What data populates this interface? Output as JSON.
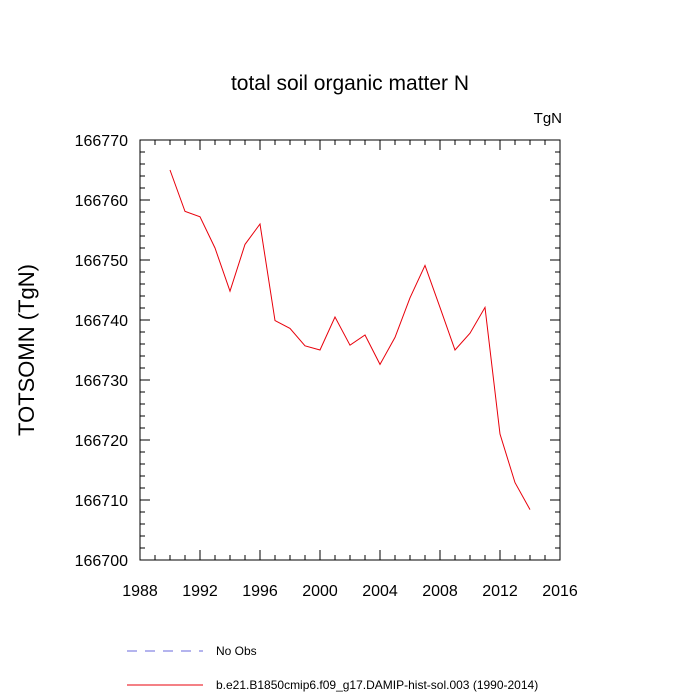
{
  "chart_data": {
    "type": "line",
    "title": "total soil organic matter N",
    "units": "TgN",
    "ylabel": "TOTSOMN  (TgN)",
    "xlabel": "",
    "xlim": [
      1988,
      2016
    ],
    "ylim": [
      166700,
      166770
    ],
    "xticks": [
      1988,
      1992,
      1996,
      2000,
      2004,
      2008,
      2012,
      2016
    ],
    "yticks": [
      166700,
      166710,
      166720,
      166730,
      166740,
      166750,
      166760,
      166770
    ],
    "grid": false,
    "legend_placement": "bottom",
    "series": [
      {
        "name": "b.e21.B1850cmip6.f09_g17.DAMIP-hist-sol.003 (1990-2014)",
        "color": "#e8000b",
        "style": "solid",
        "x": [
          1990,
          1991,
          1992,
          1993,
          1994,
          1995,
          1996,
          1997,
          1998,
          1999,
          2000,
          2001,
          2002,
          2003,
          2004,
          2005,
          2006,
          2007,
          2008,
          2009,
          2010,
          2011,
          2012,
          2013,
          2014
        ],
        "values": [
          166765.0,
          166758.1,
          166757.2,
          166752.0,
          166744.8,
          166752.6,
          166756.0,
          166739.9,
          166738.6,
          166735.7,
          166735.0,
          166740.5,
          166735.8,
          166737.5,
          166732.6,
          166737.1,
          166743.7,
          166749.1,
          166742.1,
          166735.0,
          166737.8,
          166742.1,
          166721.0,
          166712.9,
          166708.4
        ]
      }
    ],
    "legend": [
      {
        "label": "No Obs",
        "color": "#6a6adc",
        "style": "dashed"
      },
      {
        "label": "b.e21.B1850cmip6.f09_g17.DAMIP-hist-sol.003 (1990-2014)",
        "color": "#e8000b",
        "style": "solid"
      }
    ]
  }
}
